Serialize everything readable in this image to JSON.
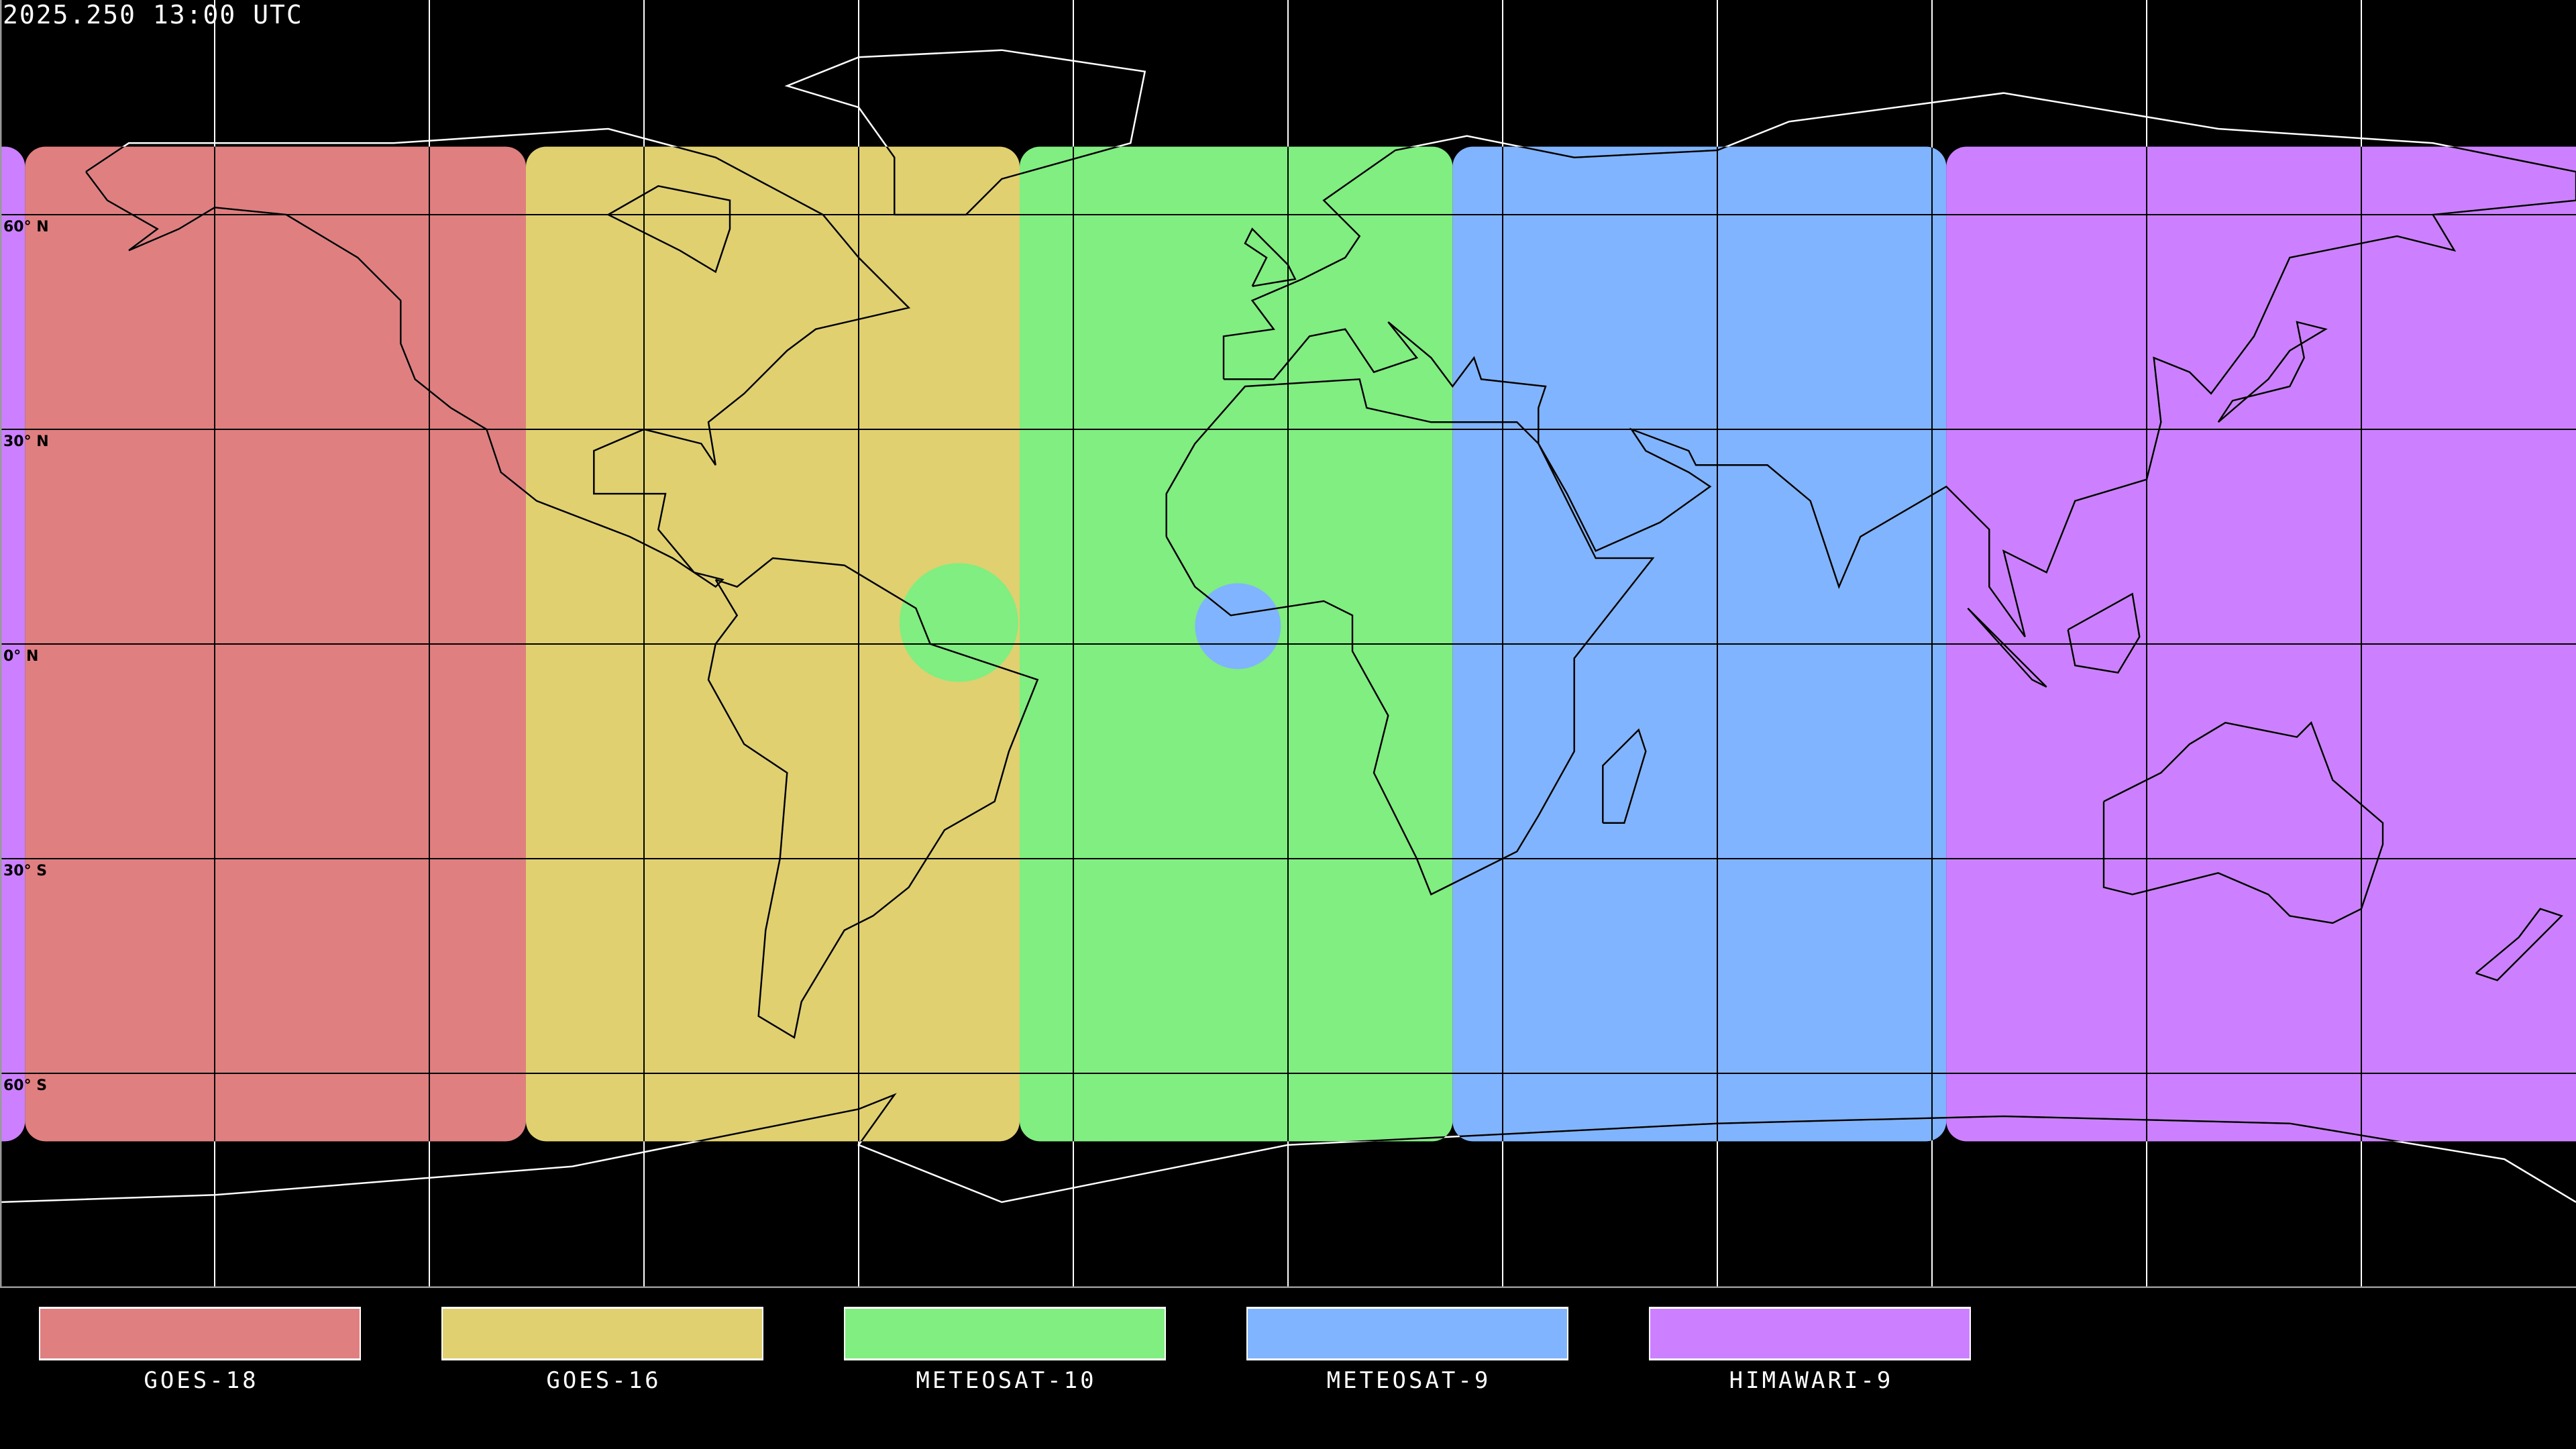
{
  "title": "2025.250 13:00 UTC",
  "lat_labels": [
    {
      "text": "60° N",
      "lat": 60
    },
    {
      "text": "30° N",
      "lat": 30
    },
    {
      "text": "0° N",
      "lat": 0
    },
    {
      "text": "30° S",
      "lat": -30
    },
    {
      "text": "60° S",
      "lat": -60
    }
  ],
  "grid": {
    "lon_step_deg": 30,
    "lat_step_deg": 30
  },
  "satellites": [
    {
      "name": "GOES-18",
      "color": "#E07F80",
      "lon_range": [
        -176.5,
        -106.5
      ],
      "lat_range": [
        -69.5,
        69.5
      ]
    },
    {
      "name": "GOES-16",
      "color": "#E0D070",
      "lon_range": [
        -106.5,
        -37.5
      ],
      "lat_range": [
        -69.5,
        69.5
      ]
    },
    {
      "name": "METEOSAT-10",
      "color": "#80EE80",
      "lon_range": [
        -37.5,
        23
      ],
      "lat_range": [
        -69.5,
        69.5
      ]
    },
    {
      "name": "METEOSAT-9",
      "color": "#80B4FF",
      "lon_range": [
        23,
        92
      ],
      "lat_range": [
        -69.5,
        69.5
      ]
    },
    {
      "name": "HIMAWARI-9",
      "color": "#CC80FF",
      "lon_range": [
        92,
        183.5
      ],
      "lat_range": [
        -69.5,
        69.5
      ]
    }
  ],
  "spots": [
    {
      "color": "#80EE80",
      "center": [
        -46,
        3
      ],
      "radius_deg": 8.3
    },
    {
      "color": "#80B4FF",
      "center": [
        -7,
        2.5
      ],
      "radius_deg": 6
    }
  ],
  "legend": [
    {
      "label": "GOES-18",
      "color": "#E07F80"
    },
    {
      "label": "GOES-16",
      "color": "#E0D070"
    },
    {
      "label": "METEOSAT-10",
      "color": "#80EE80"
    },
    {
      "label": "METEOSAT-9",
      "color": "#80B4FF"
    },
    {
      "label": "HIMAWARI-9",
      "color": "#CC80FF"
    }
  ]
}
